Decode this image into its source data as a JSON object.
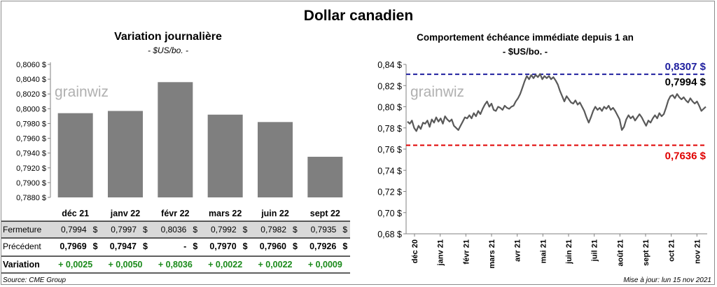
{
  "title": "Dollar canadien",
  "source": "Source: CME Group",
  "updated": "Mise à jour: lun 15 nov 2021",
  "colors": {
    "bar": "#7f7f7f",
    "line": "#595959",
    "high": "#1f1f9f",
    "low": "#e00000",
    "positive": "#1a8a1a",
    "table_band": "#d9d9d9"
  },
  "chart_data": [
    {
      "type": "bar",
      "title": "Variation  journalière",
      "subtitle": "- $US/bo. -",
      "watermark": "grainwiz",
      "categories": [
        "déc 21",
        "janv 22",
        "févr 22",
        "mars 22",
        "juin 22",
        "sept 22"
      ],
      "values": [
        0.7994,
        0.7997,
        0.8036,
        0.7992,
        0.7982,
        0.7935
      ],
      "ylim": [
        0.788,
        0.806
      ],
      "yticks": [
        "0,7880 $",
        "0,7900 $",
        "0,7920 $",
        "0,7940 $",
        "0,7960 $",
        "0,7980 $",
        "0,8000 $",
        "0,8020 $",
        "0,8040 $",
        "0,8060 $"
      ],
      "table": {
        "rows": [
          {
            "label": "Fermeture",
            "values": [
              "0,7994",
              "0,7997",
              "0,8036",
              "0,7992",
              "0,7982",
              "0,7935"
            ],
            "unit": "$"
          },
          {
            "label": "Précédent",
            "values": [
              "0,7969",
              "0,7947",
              "-",
              "0,7970",
              "0,7960",
              "0,7926"
            ],
            "unit": "$"
          },
          {
            "label": "Variation",
            "values": [
              "+ 0,0025",
              "+ 0,0050",
              "+ 0,8036",
              "+ 0,0022",
              "+ 0,0022",
              "+ 0,0009"
            ]
          }
        ]
      }
    },
    {
      "type": "line",
      "title": "Comportement échéance immédiate depuis 1 an",
      "subtitle": "- $US/bo. -",
      "watermark": "grainwiz",
      "ylim": [
        0.68,
        0.84
      ],
      "yticks": [
        "0,68 $",
        "0,70 $",
        "0,72 $",
        "0,74 $",
        "0,76 $",
        "0,78 $",
        "0,80 $",
        "0,82 $",
        "0,84 $"
      ],
      "xticks": [
        "déc 20",
        "janv 21",
        "févr 21",
        "mars 21",
        "avr 21",
        "mai 21",
        "juin 21",
        "juil 21",
        "août 21",
        "sept 21",
        "oct 21",
        "nov 21"
      ],
      "high": {
        "value": 0.8307,
        "label": "0,8307 $"
      },
      "low": {
        "value": 0.7636,
        "label": "0,7636 $"
      },
      "last": {
        "value": 0.7994,
        "label": "0,7994 $"
      },
      "series": [
        {
          "values": [
            0.786,
            0.784,
            0.787,
            0.78,
            0.777,
            0.782,
            0.779,
            0.785,
            0.784,
            0.787,
            0.781,
            0.788,
            0.785,
            0.79,
            0.786,
            0.789,
            0.784,
            0.791,
            0.788,
            0.786,
            0.788,
            0.782,
            0.78,
            0.778,
            0.782,
            0.786,
            0.79,
            0.789,
            0.792,
            0.789,
            0.794,
            0.791,
            0.796,
            0.793,
            0.798,
            0.802,
            0.805,
            0.8,
            0.803,
            0.797,
            0.796,
            0.8,
            0.799,
            0.797,
            0.801,
            0.799,
            0.798,
            0.8,
            0.801,
            0.805,
            0.808,
            0.812,
            0.818,
            0.824,
            0.829,
            0.826,
            0.83,
            0.827,
            0.83,
            0.828,
            0.831,
            0.826,
            0.829,
            0.827,
            0.829,
            0.826,
            0.828,
            0.825,
            0.821,
            0.815,
            0.81,
            0.805,
            0.81,
            0.807,
            0.804,
            0.803,
            0.806,
            0.802,
            0.804,
            0.8,
            0.796,
            0.79,
            0.785,
            0.79,
            0.796,
            0.8,
            0.797,
            0.799,
            0.796,
            0.8,
            0.798,
            0.801,
            0.797,
            0.799,
            0.796,
            0.792,
            0.788,
            0.778,
            0.781,
            0.788,
            0.792,
            0.789,
            0.791,
            0.787,
            0.79,
            0.793,
            0.79,
            0.786,
            0.782,
            0.787,
            0.785,
            0.789,
            0.792,
            0.789,
            0.794,
            0.791,
            0.793,
            0.799,
            0.806,
            0.81,
            0.811,
            0.808,
            0.812,
            0.809,
            0.807,
            0.809,
            0.806,
            0.804,
            0.808,
            0.805,
            0.803,
            0.805,
            0.801,
            0.796,
            0.798,
            0.8
          ]
        }
      ]
    }
  ]
}
